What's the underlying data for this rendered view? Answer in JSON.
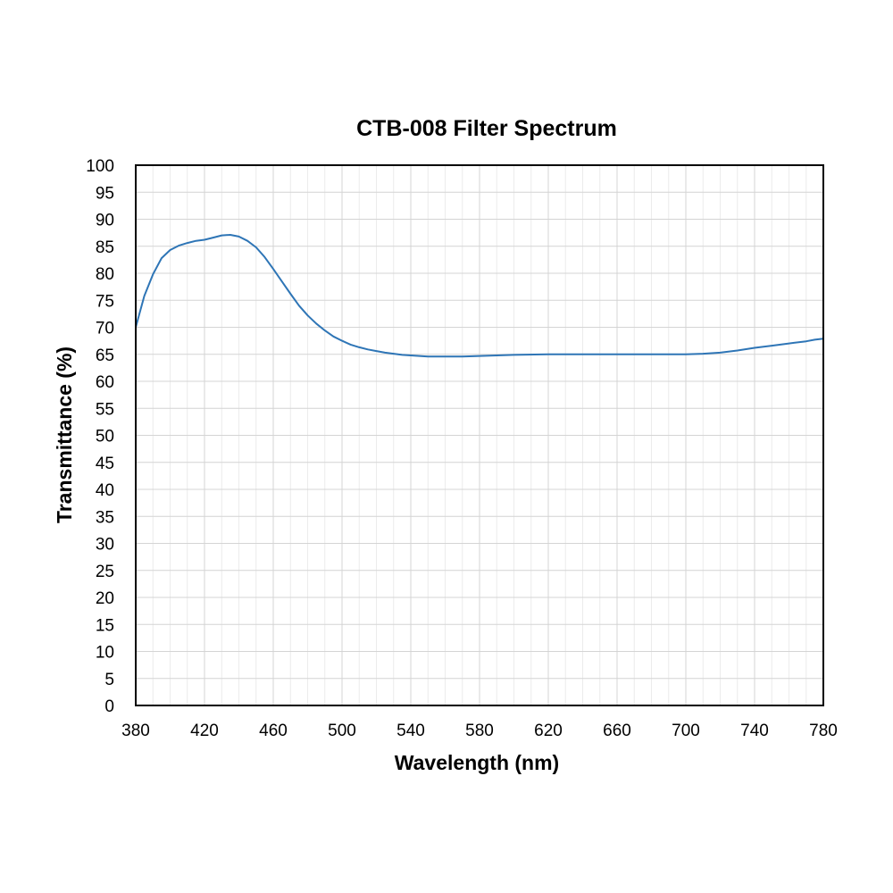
{
  "chart_data": {
    "type": "line",
    "title": "CTB-008 Filter Spectrum",
    "xlabel": "Wavelength (nm)",
    "ylabel": "Transmittance (%)",
    "xlim": [
      380,
      780
    ],
    "ylim": [
      0,
      100
    ],
    "x_ticks": [
      380,
      420,
      460,
      500,
      540,
      580,
      620,
      660,
      700,
      740,
      780
    ],
    "y_ticks": [
      0,
      5,
      10,
      15,
      20,
      25,
      30,
      35,
      40,
      45,
      50,
      55,
      60,
      65,
      70,
      75,
      80,
      85,
      90,
      95,
      100
    ],
    "grid": true,
    "line_color": "#2e75b6",
    "series": [
      {
        "x": [
          380,
          385,
          390,
          395,
          400,
          405,
          410,
          415,
          420,
          425,
          430,
          435,
          440,
          445,
          450,
          455,
          460,
          465,
          470,
          475,
          480,
          485,
          490,
          495,
          500,
          505,
          510,
          515,
          520,
          525,
          530,
          535,
          540,
          545,
          550,
          560,
          570,
          580,
          590,
          600,
          620,
          640,
          660,
          680,
          700,
          710,
          720,
          730,
          740,
          750,
          760,
          770,
          775,
          780
        ],
        "y": [
          70.0,
          75.8,
          79.8,
          82.8,
          84.3,
          85.1,
          85.6,
          86.0,
          86.2,
          86.6,
          87.0,
          87.1,
          86.8,
          86.0,
          84.8,
          83.0,
          80.8,
          78.5,
          76.2,
          74.0,
          72.2,
          70.7,
          69.4,
          68.3,
          67.5,
          66.8,
          66.3,
          65.9,
          65.6,
          65.3,
          65.1,
          64.9,
          64.8,
          64.7,
          64.6,
          64.6,
          64.6,
          64.7,
          64.8,
          64.9,
          65.0,
          65.0,
          65.0,
          65.0,
          65.0,
          65.1,
          65.3,
          65.7,
          66.2,
          66.6,
          67.0,
          67.4,
          67.7,
          67.9
        ]
      }
    ]
  }
}
